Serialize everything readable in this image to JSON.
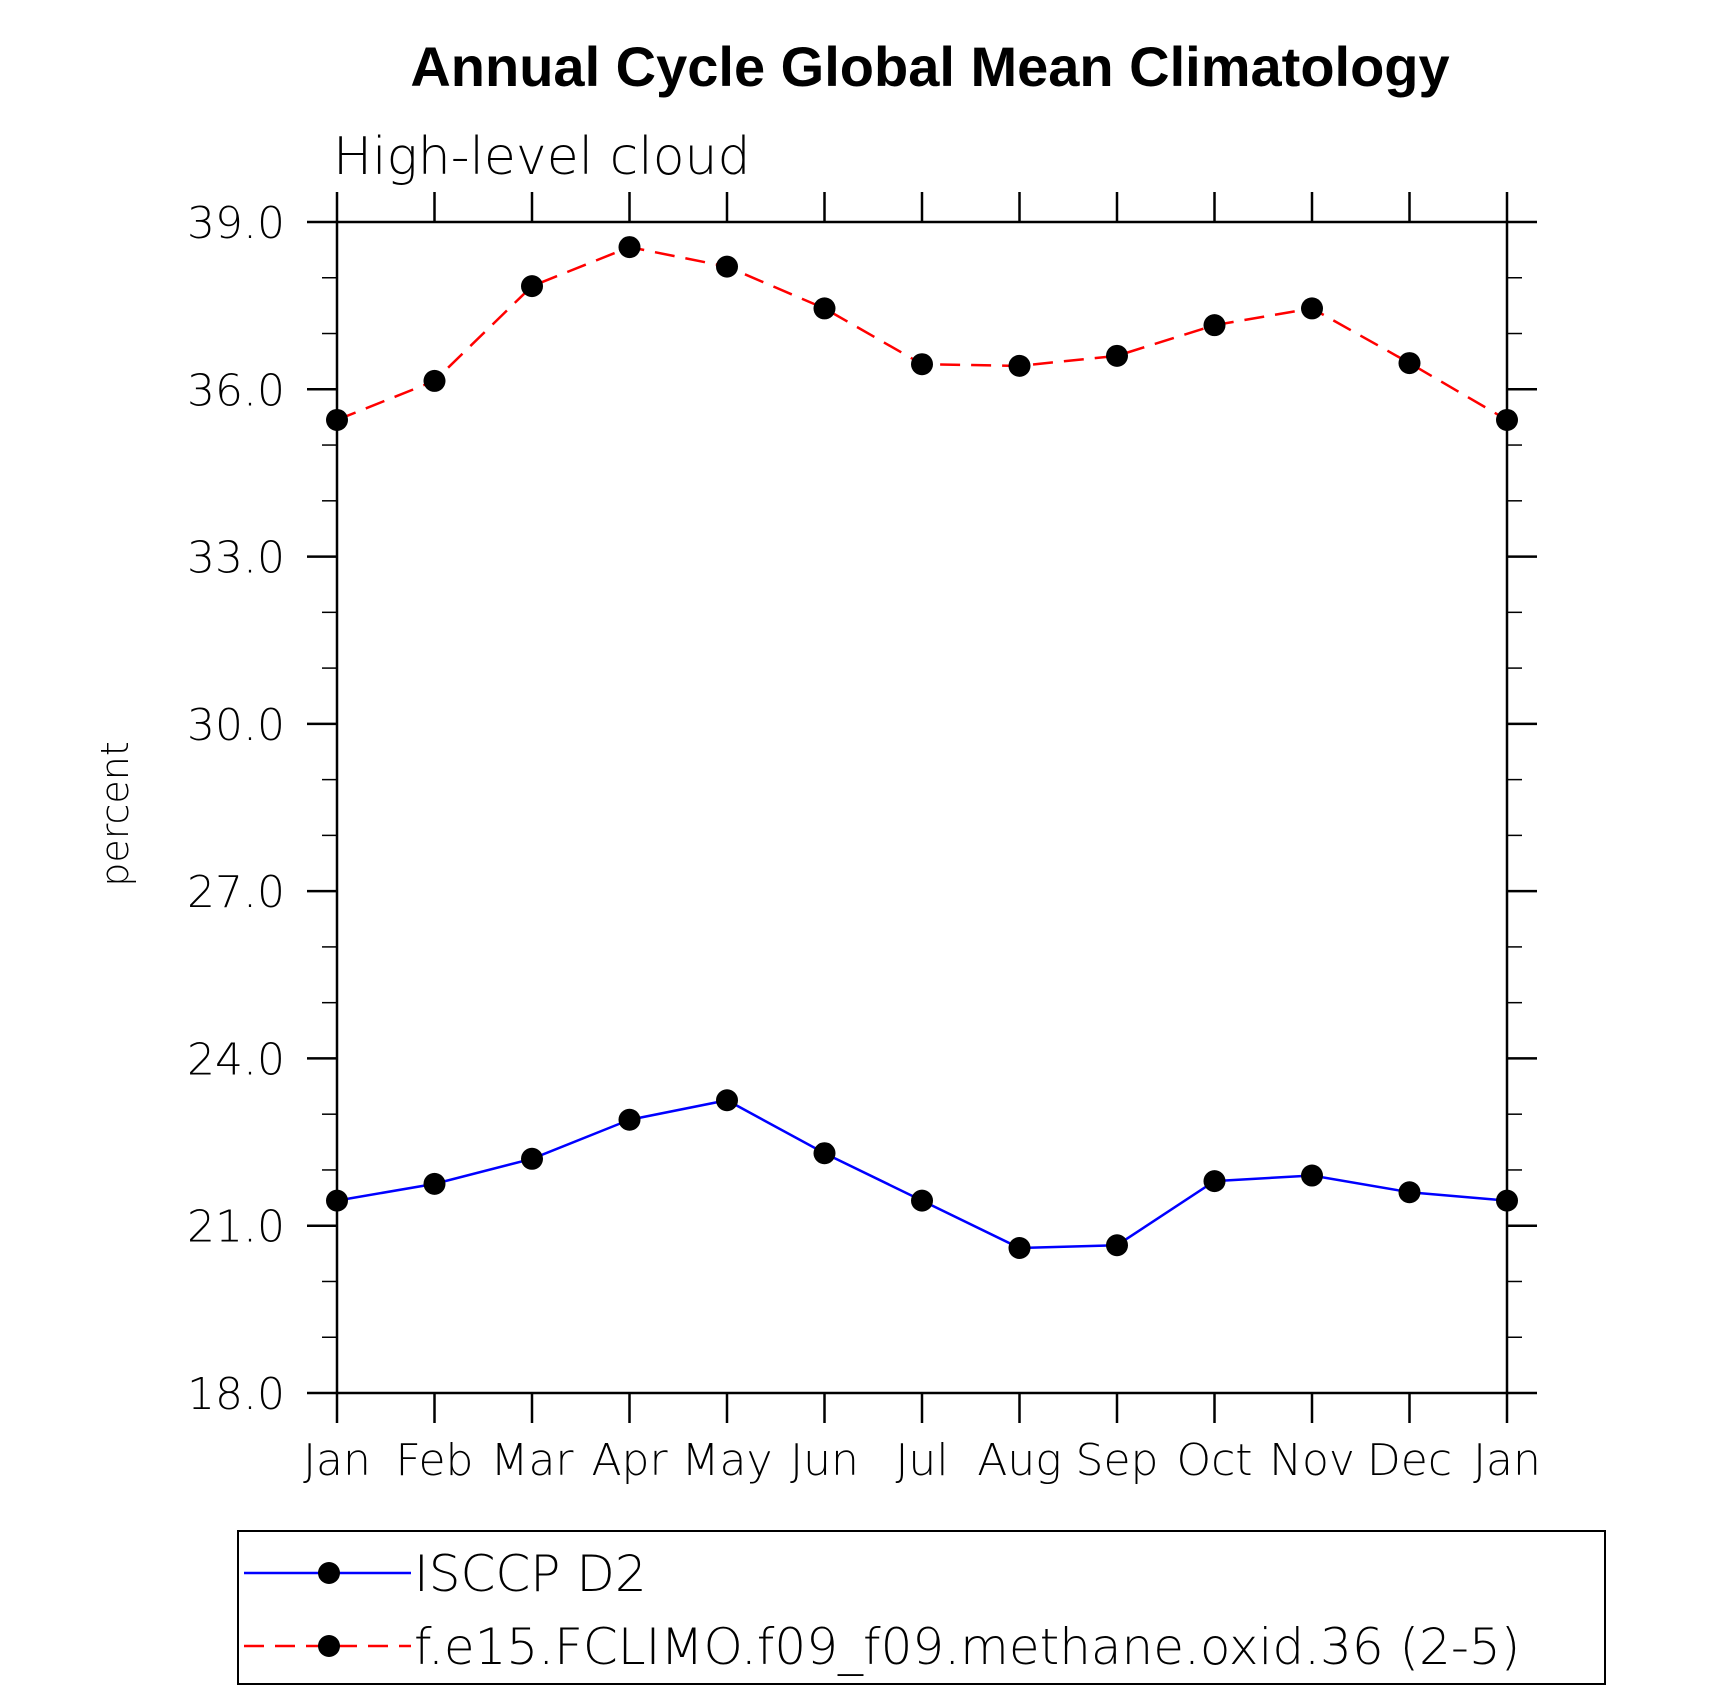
{
  "chart_data": {
    "type": "line",
    "title": "Annual Cycle Global Mean Climatology",
    "subtitle": "High-level cloud",
    "xlabel": "",
    "ylabel": "percent",
    "categories": [
      "Jan",
      "Feb",
      "Mar",
      "Apr",
      "May",
      "Jun",
      "Jul",
      "Aug",
      "Sep",
      "Oct",
      "Nov",
      "Dec",
      "Jan"
    ],
    "ylim": [
      18.0,
      39.0
    ],
    "y_ticks": [
      "18.0",
      "21.0",
      "24.0",
      "27.0",
      "30.0",
      "33.0",
      "36.0",
      "39.0"
    ],
    "grid": false,
    "legend_position": "bottom",
    "series": [
      {
        "name": "ISCCP D2",
        "color": "#0000ff",
        "line_style": "solid",
        "marker": "filled-circle",
        "values": [
          21.45,
          21.75,
          22.2,
          22.9,
          23.25,
          22.3,
          21.45,
          20.6,
          20.65,
          21.8,
          21.9,
          21.6,
          21.45
        ]
      },
      {
        "name": "f.e15.FCLIMO.f09_f09.methane.oxid.36 (2-5)",
        "color": "#ff0000",
        "line_style": "dashed",
        "marker": "filled-circle",
        "values": [
          35.45,
          36.15,
          37.85,
          38.55,
          38.2,
          37.45,
          36.45,
          36.42,
          36.6,
          37.15,
          37.45,
          36.47,
          35.45
        ]
      }
    ]
  }
}
